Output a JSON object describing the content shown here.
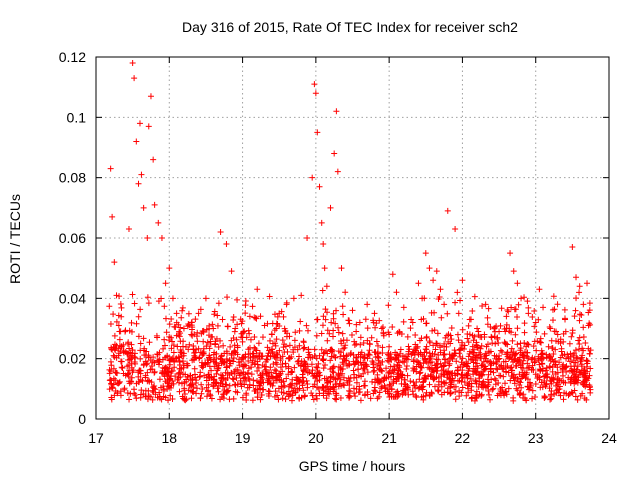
{
  "chart_data": {
    "type": "scatter",
    "title": "Day 316 of 2015, Rate Of TEC Index for receiver sch2",
    "xlabel": "GPS time / hours",
    "ylabel": "ROTI / TECUs",
    "xlim": [
      17,
      24
    ],
    "ylim": [
      0,
      0.12
    ],
    "xticks": [
      "17",
      "18",
      "19",
      "20",
      "21",
      "22",
      "23",
      "24"
    ],
    "yticks": [
      "0",
      "0.02",
      "0.04",
      "0.06",
      "0.08",
      "0.1",
      "0.12"
    ],
    "grid": true,
    "marker": "plus",
    "series_color": "#ff0000",
    "series": [
      {
        "name": "ROTI",
        "x": [
          17.2,
          17.22,
          17.25,
          17.28,
          17.32,
          17.38,
          17.45,
          17.5,
          17.52,
          17.55,
          17.58,
          17.6,
          17.62,
          17.65,
          17.7,
          17.72,
          17.75,
          17.78,
          17.8,
          17.85,
          17.9,
          17.95,
          18.0,
          18.05,
          18.1,
          18.2,
          18.3,
          18.4,
          18.5,
          18.6,
          18.7,
          18.78,
          18.85,
          18.9,
          19.0,
          19.1,
          19.2,
          19.3,
          19.4,
          19.5,
          19.6,
          19.7,
          19.8,
          19.88,
          19.95,
          19.98,
          20.0,
          20.02,
          20.05,
          20.08,
          20.1,
          20.12,
          20.15,
          20.2,
          20.25,
          20.28,
          20.3,
          20.35,
          20.4,
          20.5,
          20.6,
          20.7,
          20.8,
          20.9,
          21.0,
          21.05,
          21.1,
          21.2,
          21.3,
          21.4,
          21.45,
          21.5,
          21.55,
          21.6,
          21.65,
          21.7,
          21.75,
          21.8,
          21.9,
          21.95,
          22.0,
          22.1,
          22.2,
          22.3,
          22.4,
          22.5,
          22.6,
          22.65,
          22.7,
          22.75,
          22.8,
          22.9,
          23.0,
          23.05,
          23.1,
          23.2,
          23.3,
          23.4,
          23.5,
          23.55,
          23.6,
          23.65,
          23.7,
          23.72
        ],
        "y": [
          0.083,
          0.067,
          0.052,
          0.041,
          0.029,
          0.022,
          0.063,
          0.118,
          0.113,
          0.092,
          0.078,
          0.098,
          0.081,
          0.07,
          0.06,
          0.097,
          0.107,
          0.086,
          0.071,
          0.065,
          0.06,
          0.045,
          0.05,
          0.04,
          0.035,
          0.03,
          0.028,
          0.035,
          0.04,
          0.03,
          0.062,
          0.058,
          0.049,
          0.03,
          0.027,
          0.034,
          0.043,
          0.031,
          0.028,
          0.035,
          0.038,
          0.04,
          0.041,
          0.06,
          0.08,
          0.111,
          0.108,
          0.095,
          0.077,
          0.065,
          0.058,
          0.05,
          0.044,
          0.07,
          0.088,
          0.102,
          0.082,
          0.05,
          0.042,
          0.036,
          0.032,
          0.038,
          0.035,
          0.03,
          0.028,
          0.048,
          0.042,
          0.037,
          0.033,
          0.045,
          0.04,
          0.055,
          0.05,
          0.046,
          0.049,
          0.043,
          0.038,
          0.069,
          0.063,
          0.035,
          0.046,
          0.033,
          0.03,
          0.028,
          0.027,
          0.029,
          0.034,
          0.055,
          0.049,
          0.045,
          0.04,
          0.035,
          0.032,
          0.043,
          0.037,
          0.03,
          0.028,
          0.033,
          0.057,
          0.047,
          0.044,
          0.038,
          0.045,
          0.031
        ]
      }
    ]
  }
}
